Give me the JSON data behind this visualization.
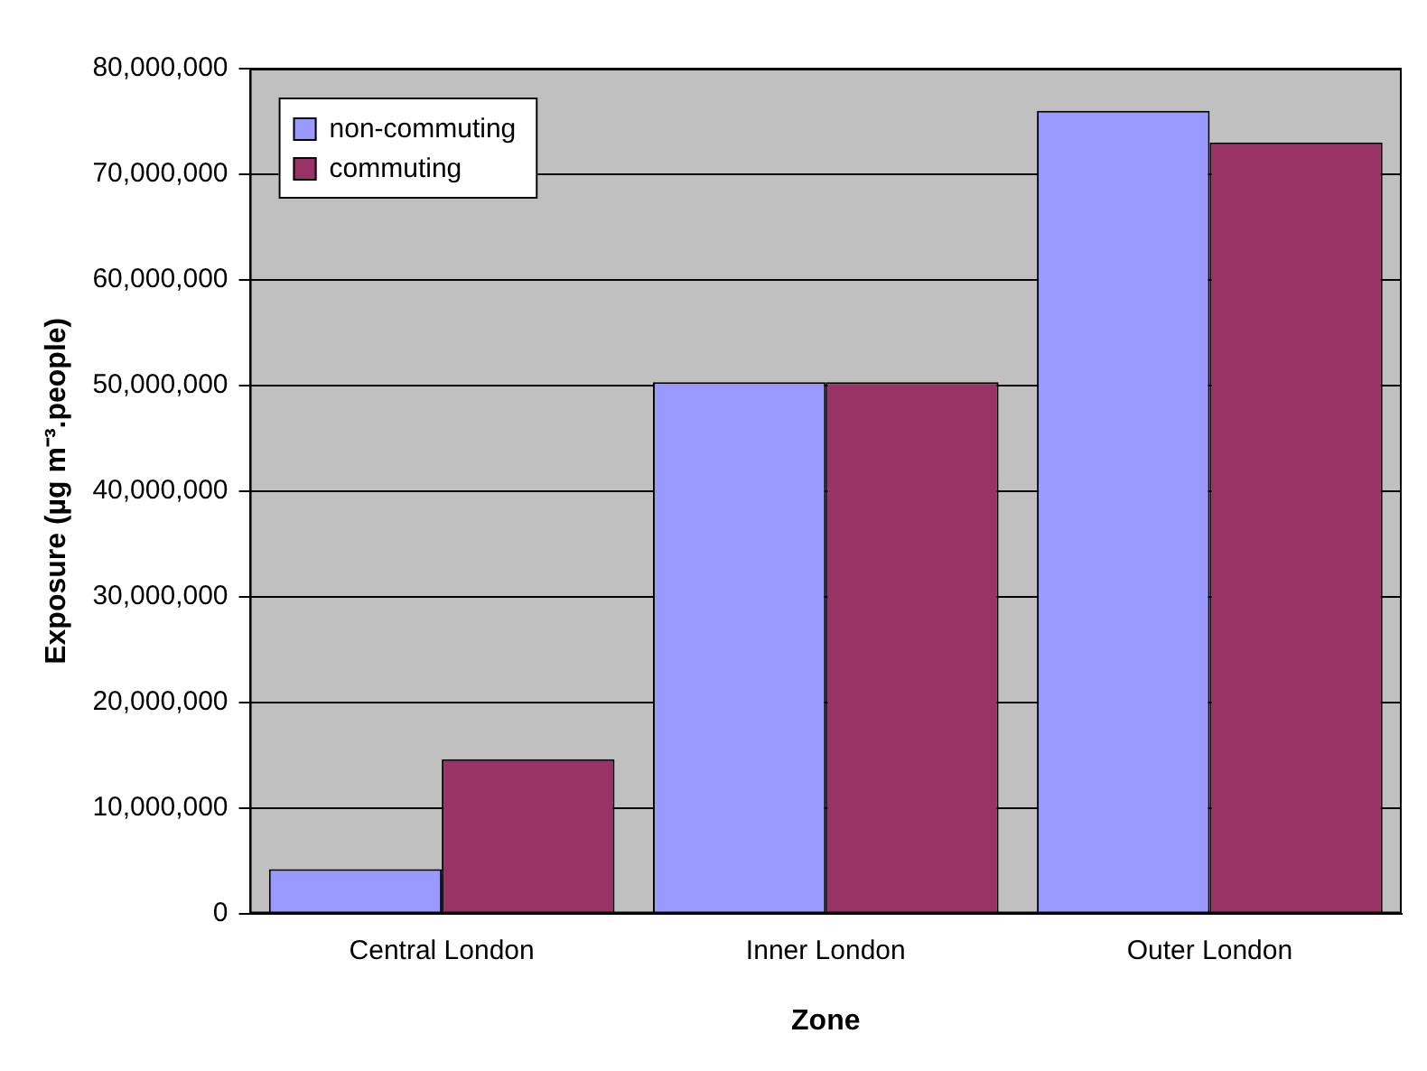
{
  "chart_data": {
    "type": "bar",
    "xlabel": "Zone",
    "ylabel": "Exposure (µg m⁻³.people)",
    "categories": [
      "Central London",
      "Inner London",
      "Outer London"
    ],
    "series": [
      {
        "name": "non-commuting",
        "color": "#9999ff",
        "values": [
          4200000,
          50300000,
          76000000
        ]
      },
      {
        "name": "commuting",
        "color": "#993366",
        "values": [
          14600000,
          50300000,
          73000000
        ]
      }
    ],
    "ylim": [
      0,
      80000000
    ],
    "yticks": [
      {
        "value": 0,
        "label": "0"
      },
      {
        "value": 10000000,
        "label": "10,000,000"
      },
      {
        "value": 20000000,
        "label": "20,000,000"
      },
      {
        "value": 30000000,
        "label": "30,000,000"
      },
      {
        "value": 40000000,
        "label": "40,000,000"
      },
      {
        "value": 50000000,
        "label": "50,000,000"
      },
      {
        "value": 60000000,
        "label": "60,000,000"
      },
      {
        "value": 70000000,
        "label": "70,000,000"
      },
      {
        "value": 80000000,
        "label": "80,000,000"
      }
    ],
    "grid": "y",
    "legend": "top left"
  }
}
